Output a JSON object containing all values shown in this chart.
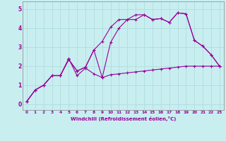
{
  "xlabel": "Windchill (Refroidissement éolien,°C)",
  "background_color": "#c8eef0",
  "grid_color": "#b0dde0",
  "line_color": "#990099",
  "x_ticks": [
    0,
    1,
    2,
    3,
    4,
    5,
    6,
    7,
    8,
    9,
    10,
    11,
    12,
    13,
    14,
    15,
    16,
    17,
    18,
    19,
    20,
    21,
    22,
    23
  ],
  "y_ticks": [
    0,
    1,
    2,
    3,
    4,
    5
  ],
  "xlim": [
    -0.5,
    23.5
  ],
  "ylim": [
    -0.3,
    5.4
  ],
  "series": [
    {
      "x": [
        0,
        1,
        2,
        3,
        4,
        5,
        6,
        7,
        8,
        9,
        10,
        11,
        12,
        13,
        14,
        15,
        16,
        17,
        18,
        19,
        20,
        21,
        22,
        23
      ],
      "y": [
        0.15,
        0.75,
        1.0,
        1.5,
        1.5,
        2.4,
        1.5,
        1.9,
        1.6,
        1.4,
        1.55,
        1.6,
        1.65,
        1.7,
        1.75,
        1.8,
        1.85,
        1.9,
        1.95,
        2.0,
        2.0,
        2.0,
        2.0,
        2.0
      ]
    },
    {
      "x": [
        0,
        1,
        2,
        3,
        4,
        5,
        6,
        7,
        8,
        9,
        10,
        11,
        12,
        13,
        14,
        15,
        16,
        17,
        18,
        19,
        20,
        21,
        22,
        23
      ],
      "y": [
        0.15,
        0.75,
        1.0,
        1.5,
        1.5,
        2.35,
        1.75,
        1.95,
        2.85,
        1.4,
        3.25,
        4.0,
        4.45,
        4.45,
        4.7,
        4.45,
        4.5,
        4.3,
        4.8,
        4.75,
        3.35,
        3.05,
        2.6,
        2.0
      ]
    },
    {
      "x": [
        0,
        1,
        2,
        3,
        4,
        5,
        6,
        7,
        8,
        9,
        10,
        11,
        12,
        13,
        14,
        15,
        16,
        17,
        18,
        19,
        20,
        21,
        22,
        23
      ],
      "y": [
        0.15,
        0.75,
        1.0,
        1.5,
        1.5,
        2.35,
        1.75,
        1.95,
        2.85,
        3.3,
        4.05,
        4.45,
        4.45,
        4.7,
        4.7,
        4.45,
        4.5,
        4.3,
        4.8,
        4.75,
        3.35,
        3.05,
        2.6,
        2.0
      ]
    }
  ]
}
